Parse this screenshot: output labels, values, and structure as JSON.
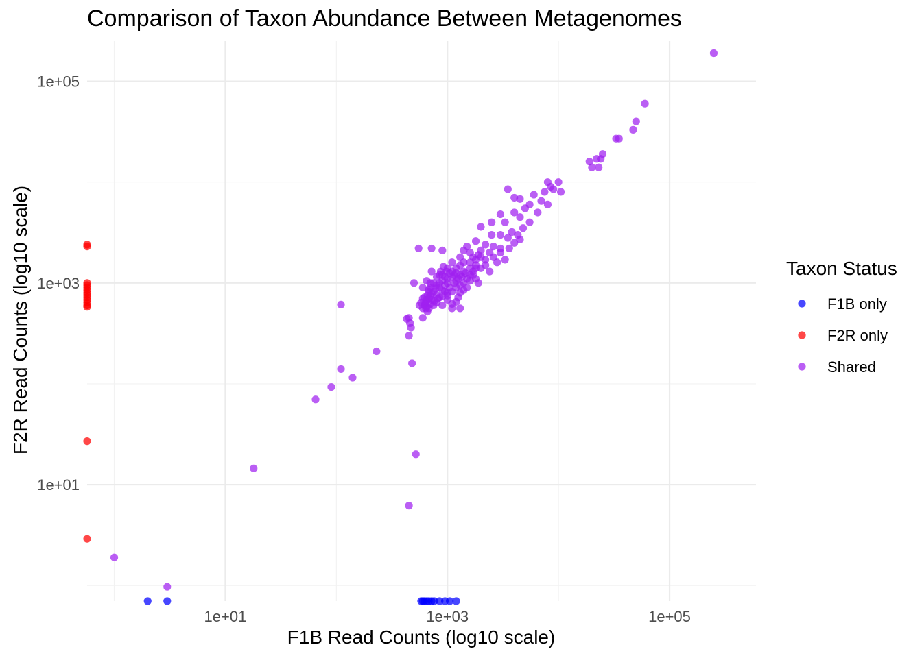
{
  "chart_data": {
    "type": "scatter",
    "title": "Comparison of Taxon Abundance Between Metagenomes",
    "xlabel": "F1B Read Counts (log10 scale)",
    "ylabel": "F2R Read Counts (log10 scale)",
    "x_scale": "log10",
    "y_scale": "log10",
    "xlim": [
      0.57,
      600000
    ],
    "ylim": [
      0.7,
      250000
    ],
    "x_ticks": [
      10,
      1000,
      100000
    ],
    "x_tick_labels": [
      "1e+01",
      "1e+03",
      "1e+05"
    ],
    "x_minor_ticks": [
      1,
      100,
      10000
    ],
    "y_ticks": [
      10,
      1000,
      100000
    ],
    "y_tick_labels": [
      "1e+01",
      "1e+03",
      "1e+05"
    ],
    "y_minor_ticks": [
      1,
      100,
      10000
    ],
    "grid": true,
    "legend": {
      "title": "Taxon Status",
      "position": "right",
      "entries": [
        {
          "label": "F1B only",
          "color": "#0000ff"
        },
        {
          "label": "F2R only",
          "color": "#ff0000"
        },
        {
          "label": "Shared",
          "color": "#a020f0"
        }
      ]
    },
    "series": [
      {
        "name": "F1B only",
        "color": "#0000ff",
        "points": [
          [
            2,
            0.7
          ],
          [
            3,
            0.7
          ],
          [
            580,
            0.7
          ],
          [
            600,
            0.7
          ],
          [
            620,
            0.7
          ],
          [
            650,
            0.7
          ],
          [
            680,
            0.7
          ],
          [
            720,
            0.7
          ],
          [
            760,
            0.7
          ],
          [
            850,
            0.7
          ],
          [
            950,
            0.7
          ],
          [
            1050,
            0.7
          ],
          [
            1200,
            0.7
          ]
        ]
      },
      {
        "name": "F2R only",
        "color": "#ff0000",
        "points": [
          [
            0.57,
            2400
          ],
          [
            0.57,
            2300
          ],
          [
            0.57,
            1000
          ],
          [
            0.57,
            950
          ],
          [
            0.57,
            900
          ],
          [
            0.57,
            850
          ],
          [
            0.57,
            800
          ],
          [
            0.57,
            760
          ],
          [
            0.57,
            720
          ],
          [
            0.57,
            680
          ],
          [
            0.57,
            640
          ],
          [
            0.57,
            600
          ],
          [
            0.57,
            580
          ],
          [
            0.57,
            27
          ],
          [
            0.57,
            2.9
          ]
        ]
      },
      {
        "name": "Shared",
        "color": "#a020f0",
        "points": [
          [
            250000,
            190000
          ],
          [
            60000,
            60000
          ],
          [
            50000,
            40000
          ],
          [
            47000,
            33000
          ],
          [
            35000,
            27000
          ],
          [
            33000,
            27000
          ],
          [
            25000,
            19000
          ],
          [
            22000,
            17000
          ],
          [
            24000,
            17000
          ],
          [
            20000,
            14000
          ],
          [
            19000,
            16000
          ],
          [
            23000,
            14000
          ],
          [
            10000,
            10000
          ],
          [
            8000,
            10000
          ],
          [
            8500,
            9000
          ],
          [
            9000,
            8500
          ],
          [
            10500,
            8000
          ],
          [
            7500,
            8000
          ],
          [
            3500,
            8500
          ],
          [
            4000,
            7000
          ],
          [
            4500,
            6800
          ],
          [
            6000,
            7500
          ],
          [
            5500,
            6000
          ],
          [
            7000,
            6500
          ],
          [
            8000,
            6000
          ],
          [
            6500,
            5000
          ],
          [
            5000,
            5500
          ],
          [
            4000,
            5000
          ],
          [
            3000,
            4800
          ],
          [
            2500,
            4000
          ],
          [
            3300,
            4000
          ],
          [
            4500,
            4500
          ],
          [
            5500,
            4000
          ],
          [
            4800,
            3500
          ],
          [
            3800,
            3200
          ],
          [
            3000,
            3000
          ],
          [
            2500,
            3000
          ],
          [
            3500,
            2800
          ],
          [
            4500,
            2700
          ],
          [
            2000,
            3600
          ],
          [
            1800,
            2600
          ],
          [
            2200,
            2400
          ],
          [
            2600,
            2300
          ],
          [
            3000,
            2200
          ],
          [
            2400,
            2000
          ],
          [
            2000,
            2100
          ],
          [
            1600,
            2000
          ],
          [
            1500,
            2300
          ],
          [
            1700,
            1800
          ],
          [
            1900,
            1900
          ],
          [
            1400,
            1600
          ],
          [
            1300,
            1800
          ],
          [
            2200,
            1700
          ],
          [
            2800,
            1600
          ],
          [
            3300,
            1700
          ],
          [
            1800,
            1500
          ],
          [
            1600,
            1400
          ],
          [
            1400,
            1300
          ],
          [
            1200,
            1400
          ],
          [
            1100,
            1300
          ],
          [
            1300,
            1200
          ],
          [
            2000,
            1400
          ],
          [
            2400,
            1300
          ],
          [
            1700,
            1200
          ],
          [
            1500,
            1100
          ],
          [
            1200,
            1050
          ],
          [
            1100,
            1150
          ],
          [
            1000,
            1100
          ],
          [
            900,
            1050
          ],
          [
            950,
            950
          ],
          [
            1050,
            900
          ],
          [
            850,
            1000
          ],
          [
            800,
            950
          ],
          [
            850,
            900
          ],
          [
            900,
            850
          ],
          [
            950,
            820
          ],
          [
            1000,
            800
          ],
          [
            780,
            880
          ],
          [
            750,
            820
          ],
          [
            720,
            780
          ],
          [
            800,
            760
          ],
          [
            850,
            720
          ],
          [
            700,
            740
          ],
          [
            680,
            700
          ],
          [
            720,
            680
          ],
          [
            760,
            660
          ],
          [
            650,
            680
          ],
          [
            640,
            650
          ],
          [
            700,
            620
          ],
          [
            630,
            620
          ],
          [
            620,
            600
          ],
          [
            650,
            580
          ],
          [
            600,
            560
          ],
          [
            680,
            560
          ],
          [
            750,
            600
          ],
          [
            800,
            640
          ],
          [
            820,
            700
          ],
          [
            900,
            740
          ],
          [
            1000,
            750
          ],
          [
            1100,
            820
          ],
          [
            1200,
            900
          ],
          [
            1300,
            950
          ],
          [
            1400,
            1000
          ],
          [
            1600,
            1050
          ],
          [
            1800,
            1100
          ],
          [
            1900,
            1000
          ],
          [
            1500,
            900
          ],
          [
            1700,
            1300
          ],
          [
            1200,
            1250
          ],
          [
            1000,
            1400
          ],
          [
            1100,
            1600
          ],
          [
            1300,
            1500
          ],
          [
            850,
            1200
          ],
          [
            750,
            1000
          ],
          [
            900,
            1200
          ],
          [
            1000,
            1000
          ],
          [
            1150,
            1000
          ],
          [
            1400,
            850
          ],
          [
            1200,
            650
          ],
          [
            700,
            900
          ],
          [
            660,
            750
          ],
          [
            620,
            720
          ],
          [
            680,
            860
          ],
          [
            600,
            700
          ],
          [
            580,
            640
          ],
          [
            560,
            600
          ],
          [
            640,
            560
          ],
          [
            660,
            520
          ],
          [
            900,
            600
          ],
          [
            1000,
            680
          ],
          [
            1100,
            620
          ],
          [
            1250,
            720
          ],
          [
            1300,
            800
          ],
          [
            1600,
            1200
          ],
          [
            1800,
            1400
          ],
          [
            2200,
            1500
          ],
          [
            2600,
            1800
          ],
          [
            3000,
            2000
          ],
          [
            3600,
            2200
          ],
          [
            4000,
            2500
          ],
          [
            4300,
            3000
          ],
          [
            1350,
            1150
          ],
          [
            1450,
            1250
          ],
          [
            1250,
            1100
          ],
          [
            1150,
            1200
          ],
          [
            1050,
            1250
          ],
          [
            950,
            1150
          ],
          [
            980,
            1300
          ],
          [
            1600,
            1600
          ],
          [
            1800,
            1700
          ],
          [
            2000,
            1800
          ],
          [
            700,
            1000
          ],
          [
            680,
            820
          ],
          [
            600,
            900
          ],
          [
            500,
            1000
          ],
          [
            720,
            2200
          ],
          [
            550,
            2200
          ],
          [
            900,
            2100
          ],
          [
            1400,
            2100
          ],
          [
            720,
            1300
          ],
          [
            1100,
            560
          ],
          [
            1300,
            560
          ],
          [
            870,
            1300
          ],
          [
            800,
            1150
          ],
          [
            650,
            1050
          ],
          [
            920,
            1450
          ],
          [
            450,
            450
          ],
          [
            430,
            440
          ],
          [
            600,
            450
          ],
          [
            470,
            360
          ],
          [
            450,
            300
          ],
          [
            460,
            400
          ],
          [
            110,
            610
          ],
          [
            230,
            210
          ],
          [
            480,
            160
          ],
          [
            110,
            140
          ],
          [
            140,
            115
          ],
          [
            90,
            93
          ],
          [
            65,
            70
          ],
          [
            520,
            20
          ],
          [
            18,
            14.5
          ],
          [
            450,
            6.2
          ],
          [
            1,
            1.9
          ],
          [
            3,
            0.97
          ]
        ]
      }
    ]
  }
}
